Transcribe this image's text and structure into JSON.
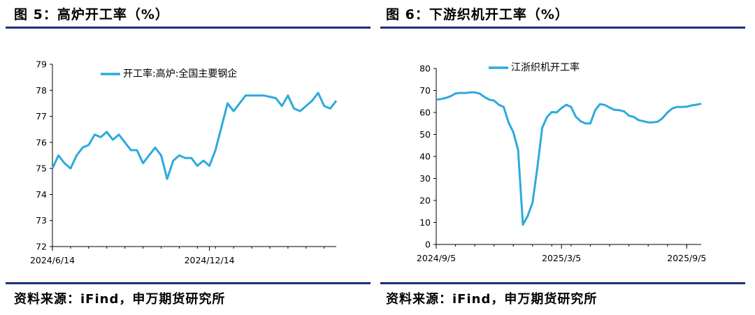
{
  "figures": [
    {
      "title": "图 5：高炉开工率（%）",
      "source": "资料来源：iFind，申万期货研究所"
    },
    {
      "title": "图 6：下游织机开工率（%）",
      "source": "资料来源：iFind，申万期货研究所"
    }
  ],
  "colors": {
    "series": "#2eaadc",
    "rule": "#1c2f7a",
    "axis": "#000000"
  },
  "chart_data": [
    {
      "type": "line",
      "title": "",
      "legend": [
        "开工率:高炉:全国主要钢企"
      ],
      "legend_position": "top-right",
      "grid": false,
      "ylim": [
        72,
        79
      ],
      "yticks": [
        "72",
        "73",
        "74",
        "75",
        "76",
        "77",
        "78",
        "79"
      ],
      "xlabels": [
        "2024/6/14",
        "2024/12/14"
      ],
      "xlabel_index": [
        0,
        26
      ],
      "series": [
        {
          "name": "开工率:高炉:全国主要钢企",
          "values": [
            75.0,
            75.5,
            75.2,
            75.0,
            75.5,
            75.8,
            75.9,
            76.3,
            76.2,
            76.4,
            76.1,
            76.3,
            76.0,
            75.7,
            75.7,
            75.2,
            75.5,
            75.8,
            75.5,
            74.6,
            75.3,
            75.5,
            75.4,
            75.4,
            75.1,
            75.3,
            75.1,
            75.7,
            76.6,
            77.5,
            77.2,
            77.5,
            77.8,
            77.8,
            77.8,
            77.8,
            77.75,
            77.7,
            77.4,
            77.8,
            77.3,
            77.2,
            77.4,
            77.6,
            77.9,
            77.4,
            77.3,
            77.6
          ]
        }
      ]
    },
    {
      "type": "line",
      "title": "",
      "legend": [
        "江浙织机开工率"
      ],
      "legend_position": "top",
      "grid": false,
      "ylim": [
        0,
        80
      ],
      "yticks": [
        "0",
        "10",
        "20",
        "30",
        "40",
        "50",
        "60",
        "70",
        "80"
      ],
      "xlabels": [
        "2024/9/5",
        "2025/3/5",
        "2025/9/5"
      ],
      "xlabel_index": [
        0,
        26,
        52
      ],
      "series": [
        {
          "name": "江浙织机开工率",
          "values": [
            65.8,
            66.1,
            66.6,
            67.4,
            68.6,
            68.9,
            68.8,
            69.1,
            69.1,
            68.6,
            67.0,
            65.8,
            65.4,
            63.5,
            62.5,
            55.5,
            51.0,
            43.0,
            9.0,
            13.0,
            19.0,
            35.0,
            53.0,
            58.0,
            60.2,
            60.0,
            62.0,
            63.5,
            62.5,
            58.0,
            56.0,
            55.0,
            55.0,
            61.0,
            63.8,
            63.4,
            62.2,
            61.2,
            61.0,
            60.5,
            58.5,
            58.0,
            56.5,
            56.0,
            55.5,
            55.5,
            55.8,
            57.5,
            60.0,
            61.8,
            62.5,
            62.5,
            62.6,
            63.2,
            63.5,
            64.0
          ]
        }
      ]
    }
  ]
}
